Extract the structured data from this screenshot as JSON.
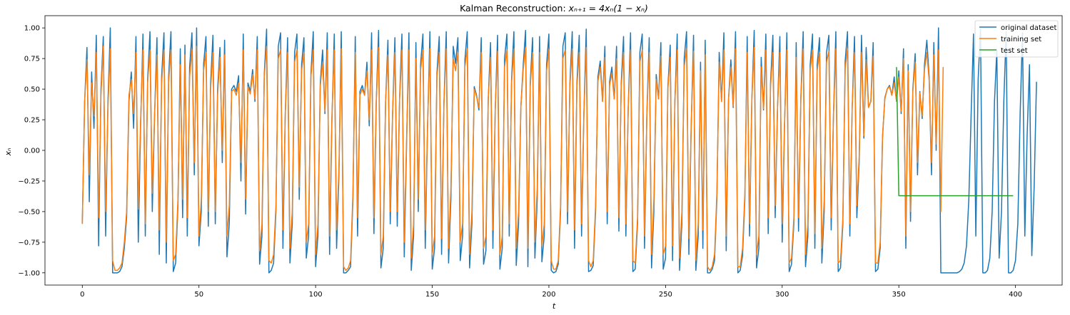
{
  "chart_data": {
    "type": "line",
    "title_prefix": "Kalman Reconstruction: ",
    "title_math": "xₙ₊₁ = 4xₙ(1 − xₙ)",
    "xlabel": "t",
    "ylabel": "xₙ",
    "xlim": [
      -16,
      420
    ],
    "ylim": [
      -1.1,
      1.1
    ],
    "xticks": [
      "0",
      "50",
      "100",
      "150",
      "200",
      "250",
      "300",
      "350",
      "400"
    ],
    "yticks": [
      "−1.00",
      "−0.75",
      "−0.50",
      "−0.25",
      "0.00",
      "0.25",
      "0.50",
      "0.75",
      "1.00"
    ],
    "legend_position": "top-right",
    "colors": {
      "original": "#1f77b4",
      "training": "#ff7f0e",
      "test": "#2ca02c"
    },
    "series": [
      {
        "name": "original dataset",
        "x_start": 0,
        "values": [
          -0.6,
          0.4,
          0.84,
          -0.42,
          0.64,
          0.18,
          0.94,
          -0.78,
          0.5,
          0.93,
          -0.7,
          0.4,
          1.0,
          -1.0,
          -1.0,
          -1.0,
          -0.99,
          -0.95,
          -0.8,
          -0.55,
          0.4,
          0.64,
          0.18,
          0.93,
          -0.75,
          0.2,
          0.95,
          -0.7,
          0.58,
          0.97,
          -0.5,
          0.3,
          0.92,
          -0.85,
          0.6,
          0.96,
          -0.92,
          0.6,
          0.97,
          -0.99,
          -0.92,
          -0.45,
          0.83,
          -0.55,
          0.86,
          -0.7,
          0.68,
          0.96,
          -0.2,
          1.0,
          -0.78,
          -0.5,
          0.7,
          0.93,
          -0.62,
          0.55,
          0.94,
          -0.6,
          0.5,
          0.84,
          -0.1,
          0.9,
          -0.87,
          -0.6,
          0.5,
          0.53,
          0.48,
          0.61,
          -0.25,
          0.95,
          -0.52,
          0.55,
          0.48,
          0.66,
          0.4,
          0.93,
          -0.93,
          -0.7,
          0.62,
          0.99,
          -1.0,
          -0.98,
          -0.92,
          -0.5,
          0.85,
          0.96,
          -0.8,
          0.3,
          0.92,
          -0.92,
          -0.6,
          0.8,
          0.95,
          -0.4,
          0.7,
          0.92,
          -0.88,
          -0.7,
          0.63,
          0.97,
          -0.95,
          -0.7,
          0.55,
          0.82,
          0.3,
          0.96,
          -0.85,
          0.25,
          0.95,
          -0.8,
          -0.2,
          0.97,
          -1.0,
          -1.0,
          -0.98,
          -0.95,
          -0.4,
          0.93,
          -0.7,
          0.48,
          0.53,
          0.45,
          0.72,
          0.2,
          0.96,
          -0.68,
          0.4,
          0.98,
          -0.96,
          -0.8,
          0.4,
          0.9,
          -0.6,
          0.3,
          0.92,
          -0.62,
          0.43,
          0.95,
          -0.87,
          0.05,
          0.96,
          -0.98,
          -0.7,
          0.88,
          -0.5,
          0.7,
          0.95,
          -0.8,
          0.2,
          0.97,
          -0.97,
          -0.8,
          0.63,
          0.93,
          -0.85,
          0.38,
          0.97,
          -0.92,
          -0.4,
          0.85,
          0.71,
          0.92,
          -0.9,
          -0.7,
          0.74,
          0.97,
          -0.96,
          -0.6,
          0.52,
          0.45,
          0.33,
          0.92,
          -0.93,
          -0.82,
          0.42,
          0.88,
          -0.8,
          0.33,
          0.94,
          -0.97,
          -0.8,
          0.75,
          0.95,
          -0.7,
          0.58,
          0.97,
          -0.94,
          -0.6,
          0.36,
          0.7,
          0.98,
          -0.95,
          0.55,
          0.92,
          -0.88,
          -0.4,
          0.93,
          -0.91,
          -0.7,
          0.7,
          0.95,
          -0.98,
          -1.0,
          -0.99,
          -0.93,
          -0.5,
          0.85,
          0.96,
          -0.6,
          0.55,
          0.97,
          -0.8,
          0.55,
          0.94,
          -0.7,
          0.3,
          0.99,
          -0.99,
          -0.98,
          -0.94,
          -0.5,
          0.6,
          0.73,
          0.4,
          0.85,
          -0.6,
          0.56,
          0.68,
          0.42,
          0.85,
          -0.66,
          0.55,
          0.93,
          -0.7,
          0.35,
          0.96,
          -0.99,
          -0.97,
          -0.6,
          0.8,
          0.95,
          -0.8,
          0.3,
          0.92,
          -0.96,
          -0.5,
          0.62,
          0.42,
          0.88,
          -0.97,
          -0.88,
          0.52,
          0.86,
          -0.9,
          0.4,
          0.95,
          -0.98,
          -0.6,
          0.75,
          0.97,
          -0.85,
          0.2,
          0.94,
          -0.98,
          -0.7,
          0.72,
          -0.8,
          0.9,
          -1.0,
          -1.0,
          -0.97,
          -0.9,
          -0.4,
          0.8,
          0.4,
          0.96,
          -0.82,
          0.42,
          0.74,
          0.35,
          0.97,
          -1.0,
          -0.98,
          -0.86,
          -0.4,
          0.93,
          -0.7,
          0.42,
          0.98,
          -0.96,
          -0.8,
          0.76,
          0.33,
          0.95,
          -0.68,
          0.55,
          0.94,
          -0.55,
          0.35,
          0.93,
          -0.75,
          0.2,
          0.96,
          -0.99,
          -0.93,
          -0.6,
          0.88,
          -0.66,
          0.43,
          0.97,
          -0.95,
          -0.7,
          0.7,
          0.95,
          -0.8,
          0.7,
          0.92,
          -0.92,
          -0.5,
          0.8,
          0.94,
          -0.65,
          0.3,
          0.97,
          -0.99,
          -0.96,
          -0.6,
          0.73,
          0.97,
          -0.7,
          0.35,
          0.93,
          -0.55,
          -0.1,
          0.94,
          0.1,
          0.84,
          0.35,
          0.4,
          0.88,
          -0.99,
          -0.97,
          -0.8,
          0.1,
          0.43,
          0.5,
          0.53,
          0.45,
          0.6,
          0.4,
          0.65,
          0.3,
          0.83,
          -0.8,
          0.7,
          -0.58,
          0.5,
          0.79,
          -0.2,
          0.48,
          0.26,
          0.7,
          0.9,
          0.6,
          -0.2,
          0.88,
          0.0,
          1.0,
          -1.0,
          -1.0,
          -1.0,
          -1.0,
          -1.0,
          -1.0,
          -1.0,
          -1.0,
          -0.99,
          -0.97,
          -0.92,
          -0.78,
          -0.4,
          0.3,
          0.95,
          -0.7,
          0.58,
          0.99,
          -1.0,
          -1.0,
          -0.98,
          -0.88,
          -0.5,
          0.4,
          0.82,
          -0.88,
          -0.5,
          0.4,
          0.97,
          -1.0,
          -1.0,
          -0.98,
          -0.9,
          -0.6,
          0.3,
          0.96,
          -0.7,
          0.13,
          0.7,
          -0.86,
          -0.3,
          0.56
        ]
      },
      {
        "name": "training set",
        "x_start": 0,
        "values": [
          -0.6,
          0.4,
          0.74,
          -0.2,
          0.55,
          0.28,
          0.8,
          -0.55,
          0.45,
          0.85,
          -0.5,
          0.35,
          0.83,
          -0.9,
          -0.98,
          -0.98,
          -0.96,
          -0.92,
          -0.75,
          -0.5,
          0.45,
          0.58,
          0.3,
          0.8,
          -0.48,
          0.25,
          0.82,
          -0.6,
          0.55,
          0.82,
          -0.35,
          0.3,
          0.78,
          -0.65,
          0.55,
          0.82,
          -0.75,
          0.55,
          0.82,
          -0.9,
          -0.85,
          -0.4,
          0.7,
          -0.4,
          0.78,
          -0.55,
          0.6,
          0.82,
          -0.1,
          0.85,
          -0.7,
          -0.4,
          0.65,
          0.8,
          -0.5,
          0.5,
          0.8,
          -0.5,
          0.45,
          0.76,
          0.0,
          0.78,
          -0.7,
          -0.45,
          0.48,
          0.5,
          0.45,
          0.55,
          -0.1,
          0.82,
          -0.4,
          0.52,
          0.46,
          0.62,
          0.42,
          0.82,
          -0.82,
          -0.6,
          0.6,
          0.85,
          -0.9,
          -0.92,
          -0.85,
          -0.45,
          0.75,
          0.82,
          -0.65,
          0.3,
          0.8,
          -0.8,
          -0.5,
          0.72,
          0.82,
          -0.3,
          0.65,
          0.8,
          -0.75,
          -0.6,
          0.6,
          0.82,
          -0.85,
          -0.6,
          0.52,
          0.72,
          0.32,
          0.82,
          -0.7,
          0.28,
          0.82,
          -0.65,
          -0.15,
          0.83,
          -0.95,
          -0.98,
          -0.96,
          -0.9,
          -0.35,
          0.8,
          -0.55,
          0.45,
          0.5,
          0.45,
          0.65,
          0.25,
          0.82,
          -0.55,
          0.4,
          0.84,
          -0.85,
          -0.7,
          0.4,
          0.78,
          -0.5,
          0.3,
          0.8,
          -0.5,
          0.42,
          0.82,
          -0.75,
          0.1,
          0.82,
          -0.88,
          -0.6,
          0.75,
          -0.4,
          0.65,
          0.82,
          -0.65,
          0.22,
          0.83,
          -0.85,
          -0.7,
          0.6,
          0.8,
          -0.72,
          0.38,
          0.83,
          -0.8,
          -0.3,
          0.75,
          0.65,
          0.8,
          -0.75,
          -0.6,
          0.68,
          0.83,
          -0.85,
          -0.5,
          0.5,
          0.44,
          0.35,
          0.8,
          -0.8,
          -0.7,
          0.42,
          0.76,
          -0.65,
          0.34,
          0.81,
          -0.85,
          -0.7,
          0.68,
          0.82,
          -0.6,
          0.55,
          0.83,
          -0.8,
          -0.5,
          0.36,
          0.66,
          0.84,
          -0.8,
          0.52,
          0.8,
          -0.75,
          -0.3,
          0.8,
          -0.78,
          -0.6,
          0.65,
          0.82,
          -0.9,
          -0.97,
          -0.97,
          -0.9,
          -0.45,
          0.75,
          0.82,
          -0.5,
          0.52,
          0.83,
          -0.65,
          0.52,
          0.8,
          -0.6,
          0.3,
          0.84,
          -0.9,
          -0.95,
          -0.9,
          -0.45,
          0.56,
          0.68,
          0.4,
          0.76,
          -0.5,
          0.53,
          0.63,
          0.42,
          0.75,
          -0.55,
          0.52,
          0.8,
          -0.6,
          0.35,
          0.82,
          -0.9,
          -0.92,
          -0.55,
          0.72,
          0.82,
          -0.7,
          0.3,
          0.8,
          -0.85,
          -0.4,
          0.58,
          0.42,
          0.77,
          -0.85,
          -0.78,
          0.5,
          0.76,
          -0.78,
          0.4,
          0.82,
          -0.88,
          -0.5,
          0.68,
          0.83,
          -0.72,
          0.22,
          0.81,
          -0.9,
          -0.6,
          0.65,
          -0.65,
          0.78,
          -0.95,
          -0.98,
          -0.95,
          -0.85,
          -0.35,
          0.72,
          0.4,
          0.82,
          -0.7,
          0.42,
          0.68,
          0.36,
          0.83,
          -0.95,
          -0.95,
          -0.8,
          -0.35,
          0.8,
          -0.6,
          0.42,
          0.84,
          -0.85,
          -0.7,
          0.68,
          0.34,
          0.82,
          -0.55,
          0.52,
          0.8,
          -0.45,
          0.35,
          0.8,
          -0.6,
          0.22,
          0.82,
          -0.92,
          -0.88,
          -0.55,
          0.76,
          -0.55,
          0.43,
          0.83,
          -0.85,
          -0.6,
          0.65,
          0.82,
          -0.68,
          0.65,
          0.8,
          -0.8,
          -0.4,
          0.72,
          0.81,
          -0.55,
          0.3,
          0.83,
          -0.92,
          -0.9,
          -0.55,
          0.67,
          0.83,
          -0.6,
          0.35,
          0.8,
          -0.45,
          -0.05,
          0.8,
          0.12,
          0.74,
          0.35,
          0.4,
          0.77,
          -0.92,
          -0.92,
          -0.75,
          0.12,
          0.42,
          0.5,
          0.52,
          0.45,
          0.55,
          0.4,
          0.6,
          0.32,
          0.75,
          -0.7,
          0.65,
          -0.5,
          0.48,
          0.72,
          -0.1,
          0.47,
          0.28,
          0.66,
          0.8,
          0.57,
          -0.1,
          0.78,
          0.05,
          0.82,
          -0.5,
          0.68
        ]
      },
      {
        "name": "test set",
        "x_start": 349,
        "values": [
          0.68,
          -0.37,
          -0.37,
          -0.37,
          -0.37,
          -0.37,
          -0.37,
          -0.37,
          -0.37,
          -0.37,
          -0.37,
          -0.37,
          -0.37,
          -0.37,
          -0.37,
          -0.37,
          -0.37,
          -0.37,
          -0.37,
          -0.37,
          -0.37,
          -0.37,
          -0.37,
          -0.37,
          -0.37,
          -0.37,
          -0.37,
          -0.37,
          -0.37,
          -0.37,
          -0.37,
          -0.37,
          -0.37,
          -0.37,
          -0.37,
          -0.37,
          -0.37,
          -0.37,
          -0.37,
          -0.37,
          -0.37,
          -0.37,
          -0.37,
          -0.37,
          -0.37,
          -0.37,
          -0.37,
          -0.37,
          -0.37,
          -0.37,
          -0.37
        ]
      }
    ]
  }
}
